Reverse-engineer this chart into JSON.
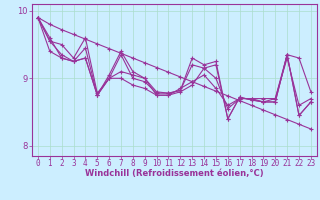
{
  "bg_color": "#cceeff",
  "line_color": "#993399",
  "marker": "+",
  "markersize": 3,
  "linewidth": 0.8,
  "markeredgewidth": 0.8,
  "xlabel": "Windchill (Refroidissement éolien,°C)",
  "xlim": [
    -0.5,
    23.5
  ],
  "ylim": [
    7.85,
    10.1
  ],
  "yticks": [
    8,
    9,
    10
  ],
  "xticks": [
    0,
    1,
    2,
    3,
    4,
    5,
    6,
    7,
    8,
    9,
    10,
    11,
    12,
    13,
    14,
    15,
    16,
    17,
    18,
    19,
    20,
    21,
    22,
    23
  ],
  "tick_fontsize": 5.5,
  "xlabel_fontsize": 6.0,
  "grid_color": "#aaddcc",
  "series": [
    [
      9.9,
      9.6,
      9.3,
      9.25,
      9.3,
      8.75,
      9.0,
      9.0,
      8.9,
      8.85,
      8.75,
      8.75,
      8.8,
      8.9,
      9.15,
      9.0,
      8.55,
      8.7,
      8.7,
      8.7,
      8.7,
      9.35,
      9.3,
      8.8
    ],
    [
      9.9,
      9.4,
      9.3,
      9.25,
      9.3,
      8.75,
      9.0,
      9.1,
      9.05,
      9.0,
      8.75,
      8.75,
      8.85,
      8.95,
      9.05,
      8.85,
      8.6,
      8.7,
      8.7,
      8.65,
      8.7,
      9.3,
      8.6,
      8.7
    ],
    [
      9.9,
      9.55,
      9.35,
      9.25,
      9.45,
      8.75,
      9.05,
      9.4,
      9.1,
      9.0,
      8.8,
      8.78,
      8.82,
      9.3,
      9.2,
      9.25,
      8.4,
      8.72,
      8.68,
      8.65,
      8.65,
      9.35,
      8.45,
      8.65
    ],
    [
      9.9,
      9.55,
      9.5,
      9.3,
      9.6,
      8.78,
      9.0,
      9.35,
      9.0,
      8.95,
      8.78,
      8.78,
      8.82,
      9.2,
      9.15,
      9.2,
      8.4,
      8.72,
      8.68,
      8.65,
      8.65,
      9.35,
      8.45,
      8.65
    ],
    [
      9.9,
      9.8,
      9.72,
      9.65,
      9.58,
      9.51,
      9.44,
      9.37,
      9.3,
      9.23,
      9.16,
      9.09,
      9.02,
      8.95,
      8.88,
      8.81,
      8.74,
      8.67,
      8.6,
      8.53,
      8.46,
      8.39,
      8.32,
      8.25
    ]
  ]
}
